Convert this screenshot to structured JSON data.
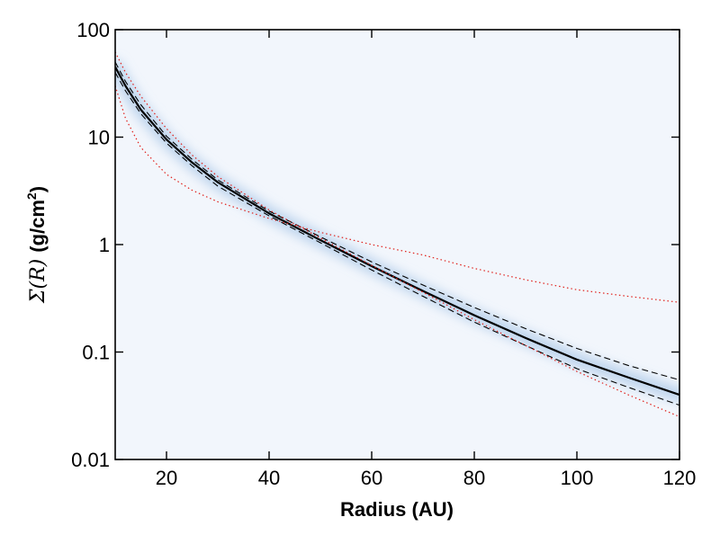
{
  "chart_data": {
    "type": "line",
    "title": "",
    "xlabel": "Radius (AU)",
    "ylabel": {
      "math": "Σ(R)",
      "text": "(g/cm",
      "superscript": "2",
      "suffix": ")"
    },
    "xlim": [
      10,
      120
    ],
    "ylim": [
      0.01,
      100
    ],
    "yscale": "log",
    "grid": false,
    "xticks": [
      20,
      40,
      60,
      80,
      100,
      120
    ],
    "xtick_labels": [
      "20",
      "40",
      "60",
      "80",
      "100",
      "120"
    ],
    "yticks": [
      0.01,
      0.1,
      1,
      10,
      100
    ],
    "ytick_labels": [
      "0.01",
      "0.1",
      "1",
      "10",
      "100"
    ],
    "background_color": "#f2f6fc",
    "series": [
      {
        "style": "solid",
        "color": "#000000",
        "x": [
          10,
          12,
          15,
          20,
          25,
          30,
          40,
          50,
          60,
          70,
          80,
          90,
          100,
          110,
          120
        ],
        "y": [
          45,
          30,
          18,
          9.5,
          5.8,
          3.8,
          1.95,
          1.1,
          0.63,
          0.37,
          0.22,
          0.135,
          0.085,
          0.058,
          0.04
        ]
      },
      {
        "style": "dashed",
        "color": "#000000",
        "x": [
          10,
          12,
          15,
          20,
          25,
          30,
          40,
          50,
          60,
          70,
          80,
          90,
          100,
          110,
          120
        ],
        "y": [
          50,
          33,
          20,
          10.2,
          6.2,
          4.0,
          2.05,
          1.18,
          0.69,
          0.42,
          0.26,
          0.165,
          0.108,
          0.075,
          0.055
        ]
      },
      {
        "style": "dashed",
        "color": "#000000",
        "x": [
          10,
          12,
          15,
          20,
          25,
          30,
          40,
          50,
          60,
          70,
          80,
          90,
          100,
          110,
          120
        ],
        "y": [
          40,
          27,
          16.5,
          8.8,
          5.4,
          3.5,
          1.85,
          1.04,
          0.58,
          0.33,
          0.19,
          0.115,
          0.07,
          0.047,
          0.032
        ]
      },
      {
        "style": "dotted",
        "color": "#e0201b",
        "x": [
          10,
          12,
          15,
          20,
          25,
          30,
          40,
          50,
          60,
          70,
          80,
          90,
          100,
          110,
          120
        ],
        "y": [
          30,
          15,
          8.0,
          4.5,
          3.2,
          2.5,
          1.75,
          1.3,
          1.0,
          0.8,
          0.6,
          0.47,
          0.38,
          0.33,
          0.29
        ]
      },
      {
        "style": "dotted",
        "color": "#e0201b",
        "x": [
          10,
          12,
          15,
          20,
          25,
          30,
          40,
          50,
          60,
          70,
          80,
          90,
          100,
          110,
          120
        ],
        "y": [
          62,
          40,
          24,
          12,
          6.8,
          4.3,
          2.1,
          1.15,
          0.64,
          0.36,
          0.2,
          0.115,
          0.066,
          0.04,
          0.025
        ]
      }
    ]
  }
}
